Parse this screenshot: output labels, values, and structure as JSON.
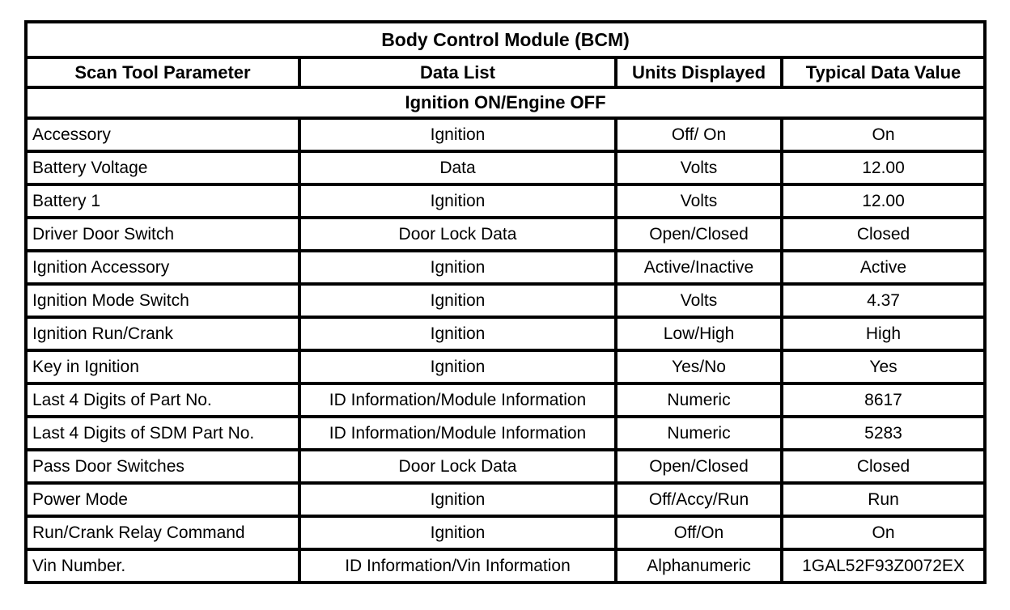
{
  "table": {
    "title": "Body Control Module (BCM)",
    "columns": [
      "Scan Tool Parameter",
      "Data List",
      "Units Displayed",
      "Typical Data Value"
    ],
    "section": "Ignition ON/Engine OFF",
    "rows": [
      {
        "param": "Accessory",
        "data_list": "Ignition",
        "units": "Off/ On",
        "value": "On"
      },
      {
        "param": "Battery Voltage",
        "data_list": "Data",
        "units": "Volts",
        "value": "12.00"
      },
      {
        "param": "Battery 1",
        "data_list": "Ignition",
        "units": "Volts",
        "value": "12.00"
      },
      {
        "param": "Driver Door Switch",
        "data_list": "Door Lock Data",
        "units": "Open/Closed",
        "value": "Closed"
      },
      {
        "param": "Ignition Accessory",
        "data_list": "Ignition",
        "units": "Active/Inactive",
        "value": "Active"
      },
      {
        "param": "Ignition Mode Switch",
        "data_list": "Ignition",
        "units": "Volts",
        "value": "4.37"
      },
      {
        "param": "Ignition Run/Crank",
        "data_list": "Ignition",
        "units": "Low/High",
        "value": "High"
      },
      {
        "param": "Key in Ignition",
        "data_list": "Ignition",
        "units": "Yes/No",
        "value": "Yes"
      },
      {
        "param": "Last 4 Digits of Part No.",
        "data_list": "ID Information/Module Information",
        "units": "Numeric",
        "value": "8617"
      },
      {
        "param": "Last 4 Digits of SDM Part No.",
        "data_list": "ID Information/Module Information",
        "units": "Numeric",
        "value": "5283"
      },
      {
        "param": "Pass Door Switches",
        "data_list": "Door Lock Data",
        "units": "Open/Closed",
        "value": "Closed"
      },
      {
        "param": "Power Mode",
        "data_list": "Ignition",
        "units": "Off/Accy/Run",
        "value": "Run"
      },
      {
        "param": "Run/Crank Relay Command",
        "data_list": "Ignition",
        "units": "Off/On",
        "value": "On"
      },
      {
        "param": "Vin Number.",
        "data_list": "ID Information/Vin Information",
        "units": "Alphanumeric",
        "value": "1GAL52F93Z0072EX"
      }
    ],
    "colors": {
      "border": "#000000",
      "background": "#ffffff",
      "text": "#000000"
    }
  }
}
